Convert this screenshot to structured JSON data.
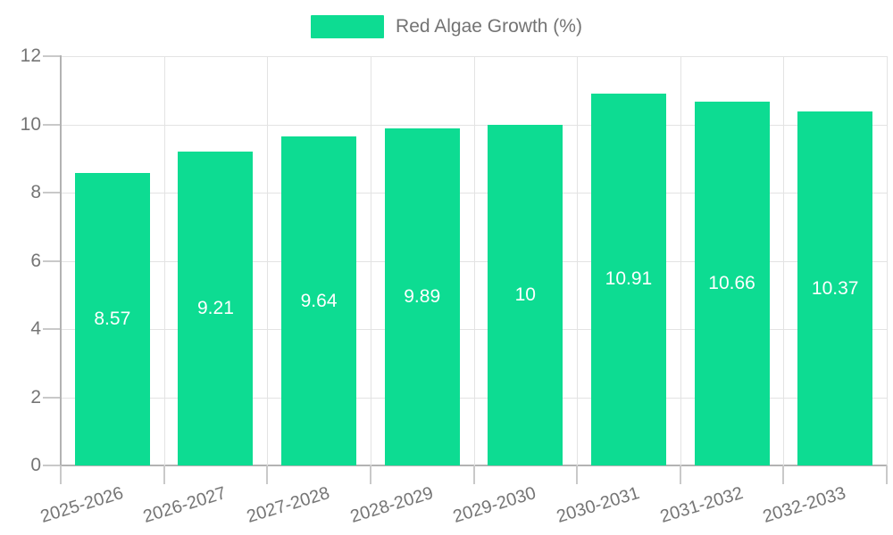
{
  "chart_data": {
    "type": "bar",
    "title": "",
    "categories": [
      "2025-2026",
      "2026-2027",
      "2027-2028",
      "2028-2029",
      "2029-2030",
      "2030-2031",
      "2031-2032",
      "2032-2033"
    ],
    "series": [
      {
        "name": "Red Algae Growth (%)",
        "values": [
          8.57,
          9.21,
          9.64,
          9.89,
          10,
          10.91,
          10.66,
          10.37
        ]
      }
    ],
    "value_labels": [
      "8.57",
      "9.21",
      "9.64",
      "9.89",
      "10",
      "10.91",
      "10.66",
      "10.37"
    ],
    "xlabel": "",
    "ylabel": "",
    "ylim": [
      0,
      12
    ],
    "ytick_step": 2,
    "ytick_labels": [
      "0",
      "2",
      "4",
      "6",
      "8",
      "10",
      "12"
    ],
    "grid": "on",
    "legend_position": "top-center",
    "colors": {
      "bar": "#0ddc92",
      "grid": "#e3e3e3",
      "axis": "#b3b3b3",
      "tick": "#c9c9c9",
      "axis_text": "#757575",
      "value_text": "#ffffff",
      "legend_text": "#737373"
    }
  }
}
